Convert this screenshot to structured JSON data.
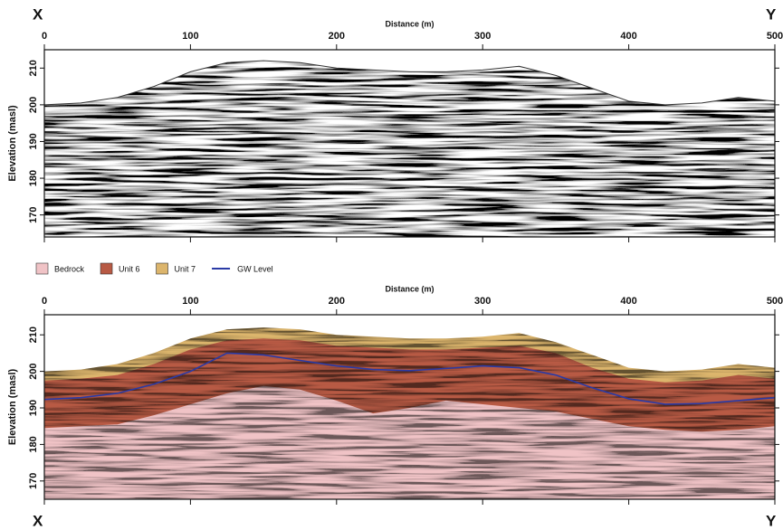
{
  "chart_data": [
    {
      "type": "radargram",
      "title": "Distance (m)",
      "ylabel": "Elevation (masl)",
      "corner_left": "X",
      "corner_right": "Y",
      "x": [
        0,
        25,
        50,
        75,
        100,
        125,
        150,
        175,
        200,
        225,
        250,
        275,
        300,
        325,
        350,
        375,
        400,
        425,
        450,
        475,
        500
      ],
      "surface": [
        200,
        200.5,
        202,
        205,
        209,
        211.5,
        212,
        211.5,
        210,
        209.5,
        209,
        209,
        209.5,
        210.5,
        208,
        204.5,
        201,
        200,
        200.5,
        202,
        201
      ],
      "xlim": [
        0,
        500
      ],
      "xticks": [
        0,
        100,
        200,
        300,
        400,
        500
      ],
      "ylim": [
        164,
        215
      ],
      "yticks": [
        170,
        180,
        190,
        200,
        210
      ]
    },
    {
      "type": "interpretation",
      "title": "Distance (m)",
      "ylabel": "Elevation (masl)",
      "corner_left": "X",
      "corner_right": "Y",
      "x": [
        0,
        25,
        50,
        75,
        100,
        125,
        150,
        175,
        200,
        225,
        250,
        275,
        300,
        325,
        350,
        375,
        400,
        425,
        450,
        475,
        500
      ],
      "series": [
        {
          "name": "Bedrock",
          "color": "#f0c3c6",
          "kind": "area",
          "values": [
            184.5,
            185,
            185.5,
            188,
            191,
            194,
            196,
            195,
            192,
            188.5,
            190,
            192,
            191,
            190,
            189,
            187,
            185,
            184,
            183.5,
            184,
            185
          ]
        },
        {
          "name": "Unit 6",
          "color": "#b85a44",
          "kind": "area",
          "values": [
            197.5,
            198,
            199,
            202,
            206,
            208.5,
            209,
            208.5,
            207,
            206.5,
            206,
            206,
            206.5,
            207,
            205,
            201,
            198,
            197,
            197.5,
            199,
            198
          ]
        },
        {
          "name": "Unit 7",
          "color": "#dcb56c",
          "kind": "area",
          "values": [
            200,
            200.5,
            202,
            205,
            209,
            211.5,
            212,
            211.5,
            210,
            209.5,
            209,
            209,
            209.5,
            210.5,
            208,
            204.5,
            201,
            200,
            200.5,
            202,
            201
          ]
        },
        {
          "name": "GW Level",
          "color": "#2a3aa6",
          "kind": "line",
          "values": [
            192.3,
            192.8,
            194,
            196.5,
            200,
            205,
            204.5,
            203,
            201.5,
            200.5,
            200.2,
            200.8,
            201.5,
            201,
            199,
            195.5,
            192.5,
            191,
            191.2,
            192,
            192.8
          ]
        }
      ],
      "xlim": [
        0,
        500
      ],
      "xticks": [
        0,
        100,
        200,
        300,
        400,
        500
      ],
      "ylim": [
        165,
        215.5
      ],
      "yticks": [
        170,
        180,
        190,
        200,
        210
      ]
    }
  ]
}
